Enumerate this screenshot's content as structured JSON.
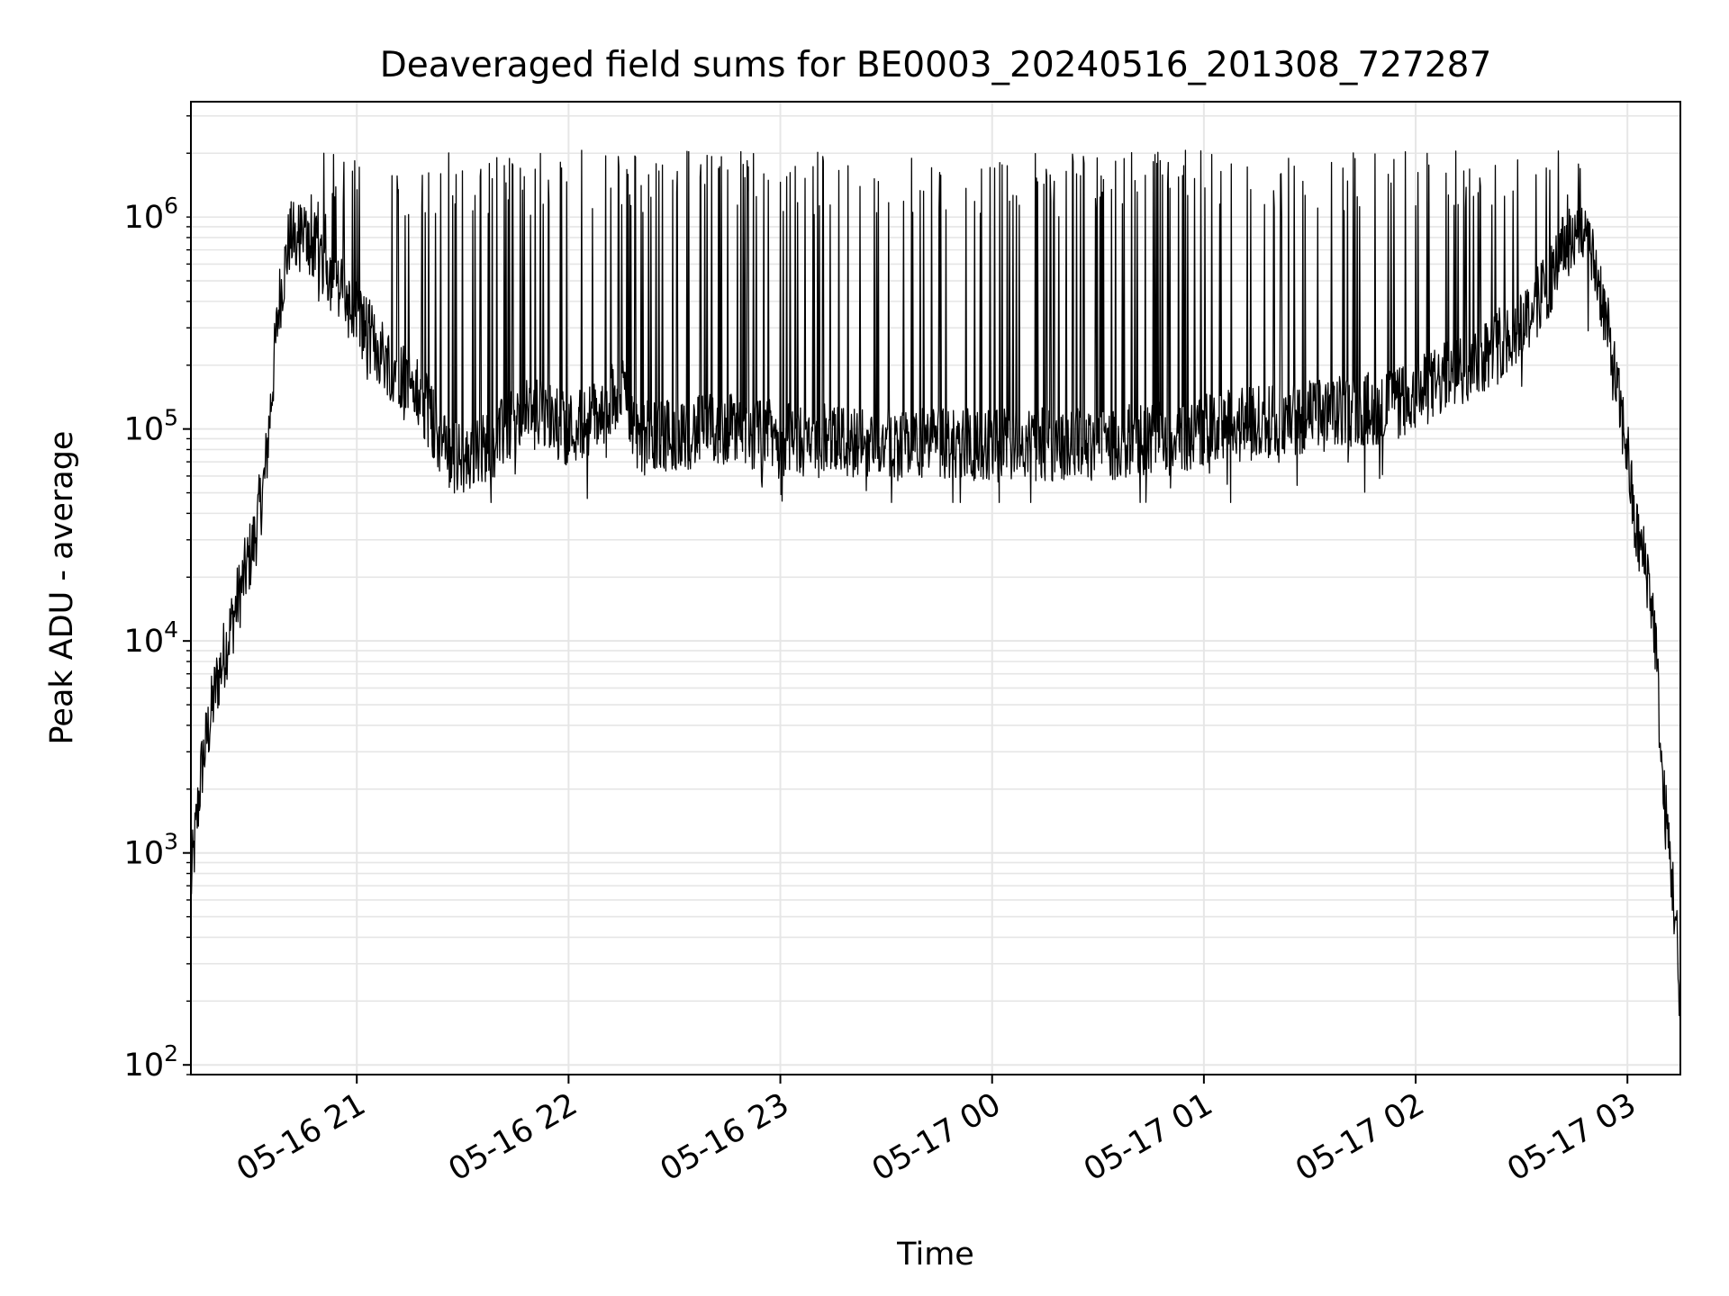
{
  "chart_data": {
    "type": "line",
    "title": "Deaveraged field sums for BE0003_20240516_201308_727287",
    "xlabel": "Time",
    "ylabel": "Peak ADU - average",
    "yscale": "log",
    "ylim": [
      90,
      3500000
    ],
    "xlim": [
      "2024-05-16 20:13",
      "2024-05-17 03:15"
    ],
    "grid": true,
    "line_color": "#000000",
    "grid_color": "#e6e6e6",
    "x_ticks": [
      {
        "t": "2024-05-16 21:00",
        "label": "05-16 21"
      },
      {
        "t": "2024-05-16 22:00",
        "label": "05-16 22"
      },
      {
        "t": "2024-05-16 23:00",
        "label": "05-16 23"
      },
      {
        "t": "2024-05-17 00:00",
        "label": "05-17 00"
      },
      {
        "t": "2024-05-17 01:00",
        "label": "05-17 01"
      },
      {
        "t": "2024-05-17 02:00",
        "label": "05-17 02"
      },
      {
        "t": "2024-05-17 03:00",
        "label": "05-17 03"
      }
    ],
    "y_ticks": [
      {
        "v": 100,
        "base": "10",
        "exp": "2"
      },
      {
        "v": 1000,
        "base": "10",
        "exp": "3"
      },
      {
        "v": 10000,
        "base": "10",
        "exp": "4"
      },
      {
        "v": 100000,
        "base": "10",
        "exp": "5"
      },
      {
        "v": 1000000,
        "base": "10",
        "exp": "6"
      }
    ],
    "series": [
      {
        "baseline": [
          [
            "2024-05-16 20:13",
            700
          ],
          [
            "2024-05-16 20:16",
            2500
          ],
          [
            "2024-05-16 20:20",
            6000
          ],
          [
            "2024-05-16 20:26",
            15000
          ],
          [
            "2024-05-16 20:31",
            30000
          ],
          [
            "2024-05-16 20:34",
            60000
          ],
          [
            "2024-05-16 20:38",
            400000
          ],
          [
            "2024-05-16 20:41",
            800000
          ],
          [
            "2024-05-16 20:45",
            800000
          ],
          [
            "2024-05-16 20:50",
            650000
          ],
          [
            "2024-05-16 20:55",
            450000
          ],
          [
            "2024-05-16 21:00",
            350000
          ],
          [
            "2024-05-16 21:05",
            250000
          ],
          [
            "2024-05-16 21:10",
            200000
          ],
          [
            "2024-05-16 21:15",
            170000
          ],
          [
            "2024-05-16 21:20",
            120000
          ],
          [
            "2024-05-16 21:25",
            80000
          ],
          [
            "2024-05-16 21:30",
            70000
          ],
          [
            "2024-05-16 21:40",
            90000
          ],
          [
            "2024-05-16 21:50",
            120000
          ],
          [
            "2024-05-16 22:00",
            100000
          ],
          [
            "2024-05-16 22:10",
            120000
          ],
          [
            "2024-05-16 22:15",
            160000
          ],
          [
            "2024-05-16 22:20",
            90000
          ],
          [
            "2024-05-16 22:30",
            95000
          ],
          [
            "2024-05-16 22:45",
            100000
          ],
          [
            "2024-05-16 23:00",
            90000
          ],
          [
            "2024-05-16 23:30",
            85000
          ],
          [
            "2024-05-17 00:00",
            85000
          ],
          [
            "2024-05-17 00:30",
            85000
          ],
          [
            "2024-05-17 00:50",
            90000
          ],
          [
            "2024-05-17 01:00",
            100000
          ],
          [
            "2024-05-17 01:20",
            110000
          ],
          [
            "2024-05-17 01:40",
            120000
          ],
          [
            "2024-05-17 01:55",
            130000
          ],
          [
            "2024-05-17 02:05",
            160000
          ],
          [
            "2024-05-17 02:15",
            200000
          ],
          [
            "2024-05-17 02:25",
            260000
          ],
          [
            "2024-05-17 02:35",
            400000
          ],
          [
            "2024-05-17 02:42",
            700000
          ],
          [
            "2024-05-17 02:47",
            900000
          ],
          [
            "2024-05-17 02:52",
            500000
          ],
          [
            "2024-05-17 02:55",
            250000
          ],
          [
            "2024-05-17 02:58",
            120000
          ],
          [
            "2024-05-17 03:00",
            80000
          ],
          [
            "2024-05-17 03:02",
            35000
          ],
          [
            "2024-05-17 03:06",
            20000
          ],
          [
            "2024-05-17 03:08",
            10000
          ],
          [
            "2024-05-17 03:10",
            2000
          ],
          [
            "2024-05-17 03:12",
            1000
          ],
          [
            "2024-05-17 03:14",
            400
          ],
          [
            "2024-05-17 03:15",
            120
          ]
        ],
        "spike_windows": [
          [
            "2024-05-16 20:42",
            "2024-05-17 02:49"
          ]
        ],
        "spike_range": [
          1000000,
          2200000
        ],
        "min_dips": 45000
      }
    ]
  }
}
